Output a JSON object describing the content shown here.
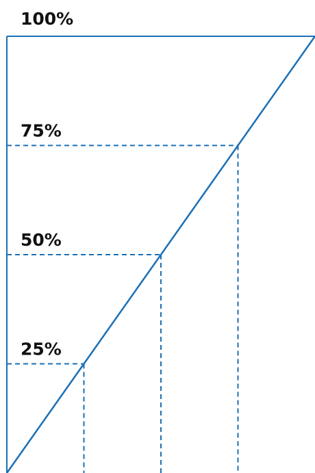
{
  "chart_data": {
    "type": "line",
    "title": "",
    "xlabel": "",
    "ylabel": "",
    "ylim": [
      0,
      100
    ],
    "xlim": [
      0,
      100
    ],
    "y_tick_labels": [
      "100%",
      "75%",
      "50%",
      "25%"
    ],
    "series": [
      {
        "x": [
          0,
          100
        ],
        "y": [
          0,
          100
        ]
      }
    ],
    "markers": [
      {
        "label": "25%",
        "x": 25,
        "y": 25
      },
      {
        "label": "50%",
        "x": 50,
        "y": 50
      },
      {
        "label": "75%",
        "x": 75,
        "y": 75
      }
    ],
    "grid": false,
    "colors": {
      "line": "#1a6fb4",
      "axis": "#1a6fb4",
      "dashes": "#1a6fb4",
      "text": "#111111"
    }
  }
}
